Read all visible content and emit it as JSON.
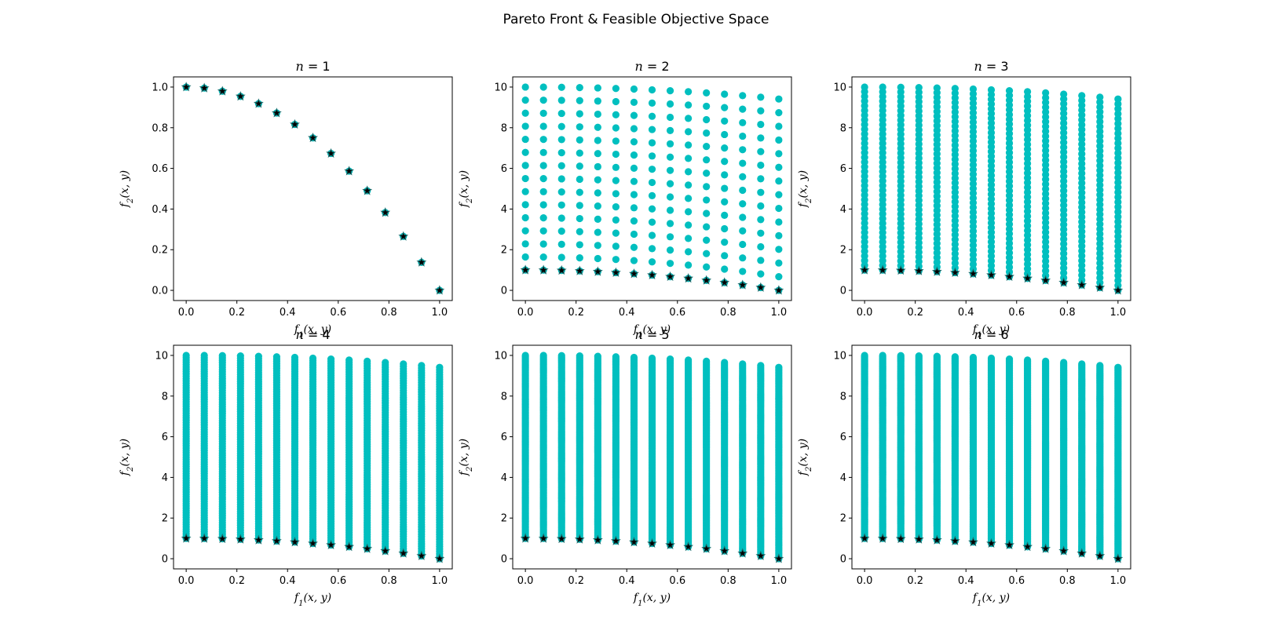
{
  "figure": {
    "title": "Pareto Front & Feasible Objective Space",
    "colors": {
      "feasible": "#00bfbf",
      "pareto": "#000000",
      "pareto_edge": "#1a6d6d",
      "axes": "#000000",
      "background": "#ffffff"
    },
    "marker_shapes": {
      "feasible": "circle",
      "pareto": "star"
    }
  },
  "chart_data": [
    {
      "type": "scatter",
      "title": "n = 1",
      "n": 1,
      "xlabel": "f1(x, y)",
      "ylabel": "f2(x, y)",
      "xlim": [
        -0.05,
        1.05
      ],
      "ylim": [
        -0.05,
        1.05
      ],
      "xticks": [
        "0.0",
        "0.2",
        "0.4",
        "0.6",
        "0.8",
        "1.0"
      ],
      "yticks": [
        "0.0",
        "0.2",
        "0.4",
        "0.6",
        "0.8",
        "1.0"
      ],
      "series": [
        {
          "x": [
            0.0,
            0.0714,
            0.1429,
            0.2143,
            0.2857,
            0.3571,
            0.4286,
            0.5,
            0.5714,
            0.6429,
            0.7143,
            0.7857,
            0.8571,
            0.9286,
            1.0
          ],
          "y": [
            1.0,
            0.9949,
            0.9796,
            0.9541,
            0.9184,
            0.8724,
            0.8163,
            0.75,
            0.6735,
            0.5867,
            0.4898,
            0.3827,
            0.2653,
            0.1378,
            0.0
          ]
        }
      ],
      "feasible_same_as_pareto": true,
      "grid": false
    },
    {
      "type": "scatter",
      "title": "n = 2",
      "n": 2,
      "xlabel": "f1(x, y)",
      "ylabel": "f2(x, y)",
      "xlim": [
        -0.05,
        1.05
      ],
      "ylim": [
        -0.5,
        10.5
      ],
      "xticks": [
        "0.0",
        "0.2",
        "0.4",
        "0.6",
        "0.8",
        "1.0"
      ],
      "yticks": [
        "0",
        "2",
        "4",
        "6",
        "8",
        "10"
      ],
      "feasible_columns_x": [
        0.0,
        0.0714,
        0.1429,
        0.2143,
        0.2857,
        0.3571,
        0.4286,
        0.5,
        0.5714,
        0.6429,
        0.7143,
        0.7857,
        0.8571,
        0.9286,
        1.0
      ],
      "feasible_rows_per_column": 15,
      "feasible_y_top": 10.0,
      "series": [
        {
          "x": [
            0.0,
            0.0714,
            0.1429,
            0.2143,
            0.2857,
            0.3571,
            0.4286,
            0.5,
            0.5714,
            0.6429,
            0.7143,
            0.7857,
            0.8571,
            0.9286,
            1.0
          ],
          "y": [
            1.0,
            0.9949,
            0.9796,
            0.9541,
            0.9184,
            0.8724,
            0.8163,
            0.75,
            0.6735,
            0.5867,
            0.4898,
            0.3827,
            0.2653,
            0.1378,
            0.0
          ]
        }
      ],
      "grid": false
    },
    {
      "type": "scatter",
      "title": "n = 3",
      "n": 3,
      "xlabel": "f1(x, y)",
      "ylabel": "f2(x, y)",
      "xlim": [
        -0.05,
        1.05
      ],
      "ylim": [
        -0.5,
        10.5
      ],
      "xticks": [
        "0.0",
        "0.2",
        "0.4",
        "0.6",
        "0.8",
        "1.0"
      ],
      "yticks": [
        "0",
        "2",
        "4",
        "6",
        "8",
        "10"
      ],
      "feasible_columns_x": [
        0.0,
        0.0714,
        0.1429,
        0.2143,
        0.2857,
        0.3571,
        0.4286,
        0.5,
        0.5714,
        0.6429,
        0.7143,
        0.7857,
        0.8571,
        0.9286,
        1.0
      ],
      "feasible_rows_per_column": 40,
      "feasible_y_top": 10.0,
      "series": [
        {
          "x": [
            0.0,
            0.0714,
            0.1429,
            0.2143,
            0.2857,
            0.3571,
            0.4286,
            0.5,
            0.5714,
            0.6429,
            0.7143,
            0.7857,
            0.8571,
            0.9286,
            1.0
          ],
          "y": [
            1.0,
            0.9949,
            0.9796,
            0.9541,
            0.9184,
            0.8724,
            0.8163,
            0.75,
            0.6735,
            0.5867,
            0.4898,
            0.3827,
            0.2653,
            0.1378,
            0.0
          ]
        }
      ],
      "grid": false
    },
    {
      "type": "scatter",
      "title": "n = 4",
      "n": 4,
      "xlabel": "f1(x, y)",
      "ylabel": "f2(x, y)",
      "xlim": [
        -0.05,
        1.05
      ],
      "ylim": [
        -0.5,
        10.5
      ],
      "xticks": [
        "0.0",
        "0.2",
        "0.4",
        "0.6",
        "0.8",
        "1.0"
      ],
      "yticks": [
        "0",
        "2",
        "4",
        "6",
        "8",
        "10"
      ],
      "feasible_columns_x": [
        0.0,
        0.0714,
        0.1429,
        0.2143,
        0.2857,
        0.3571,
        0.4286,
        0.5,
        0.5714,
        0.6429,
        0.7143,
        0.7857,
        0.8571,
        0.9286,
        1.0
      ],
      "feasible_rows_per_column": 80,
      "feasible_y_top": 10.0,
      "series": [
        {
          "x": [
            0.0,
            0.0714,
            0.1429,
            0.2143,
            0.2857,
            0.3571,
            0.4286,
            0.5,
            0.5714,
            0.6429,
            0.7143,
            0.7857,
            0.8571,
            0.9286,
            1.0
          ],
          "y": [
            1.0,
            0.9949,
            0.9796,
            0.9541,
            0.9184,
            0.8724,
            0.8163,
            0.75,
            0.6735,
            0.5867,
            0.4898,
            0.3827,
            0.2653,
            0.1378,
            0.0
          ]
        }
      ],
      "grid": false
    },
    {
      "type": "scatter",
      "title": "n = 5",
      "n": 5,
      "xlabel": "f1(x, y)",
      "ylabel": "f2(x, y)",
      "xlim": [
        -0.05,
        1.05
      ],
      "ylim": [
        -0.5,
        10.5
      ],
      "xticks": [
        "0.0",
        "0.2",
        "0.4",
        "0.6",
        "0.8",
        "1.0"
      ],
      "yticks": [
        "0",
        "2",
        "4",
        "6",
        "8",
        "10"
      ],
      "feasible_columns_x": [
        0.0,
        0.0714,
        0.1429,
        0.2143,
        0.2857,
        0.3571,
        0.4286,
        0.5,
        0.5714,
        0.6429,
        0.7143,
        0.7857,
        0.8571,
        0.9286,
        1.0
      ],
      "feasible_rows_per_column": 120,
      "feasible_y_top": 10.0,
      "series": [
        {
          "x": [
            0.0,
            0.0714,
            0.1429,
            0.2143,
            0.2857,
            0.3571,
            0.4286,
            0.5,
            0.5714,
            0.6429,
            0.7143,
            0.7857,
            0.8571,
            0.9286,
            1.0
          ],
          "y": [
            1.0,
            0.9949,
            0.9796,
            0.9541,
            0.9184,
            0.8724,
            0.8163,
            0.75,
            0.6735,
            0.5867,
            0.4898,
            0.3827,
            0.2653,
            0.1378,
            0.0
          ]
        }
      ],
      "grid": false
    },
    {
      "type": "scatter",
      "title": "n = 6",
      "n": 6,
      "xlabel": "f1(x, y)",
      "ylabel": "f2(x, y)",
      "xlim": [
        -0.05,
        1.05
      ],
      "ylim": [
        -0.5,
        10.5
      ],
      "xticks": [
        "0.0",
        "0.2",
        "0.4",
        "0.6",
        "0.8",
        "1.0"
      ],
      "yticks": [
        "0",
        "2",
        "4",
        "6",
        "8",
        "10"
      ],
      "feasible_columns_x": [
        0.0,
        0.0714,
        0.1429,
        0.2143,
        0.2857,
        0.3571,
        0.4286,
        0.5,
        0.5714,
        0.6429,
        0.7143,
        0.7857,
        0.8571,
        0.9286,
        1.0
      ],
      "feasible_rows_per_column": 160,
      "feasible_y_top": 10.0,
      "series": [
        {
          "x": [
            0.0,
            0.0714,
            0.1429,
            0.2143,
            0.2857,
            0.3571,
            0.4286,
            0.5,
            0.5714,
            0.6429,
            0.7143,
            0.7857,
            0.8571,
            0.9286,
            1.0
          ],
          "y": [
            1.0,
            0.9949,
            0.9796,
            0.9541,
            0.9184,
            0.8724,
            0.8163,
            0.75,
            0.6735,
            0.5867,
            0.4898,
            0.3827,
            0.2653,
            0.1378,
            0.0
          ]
        }
      ],
      "grid": false
    }
  ]
}
